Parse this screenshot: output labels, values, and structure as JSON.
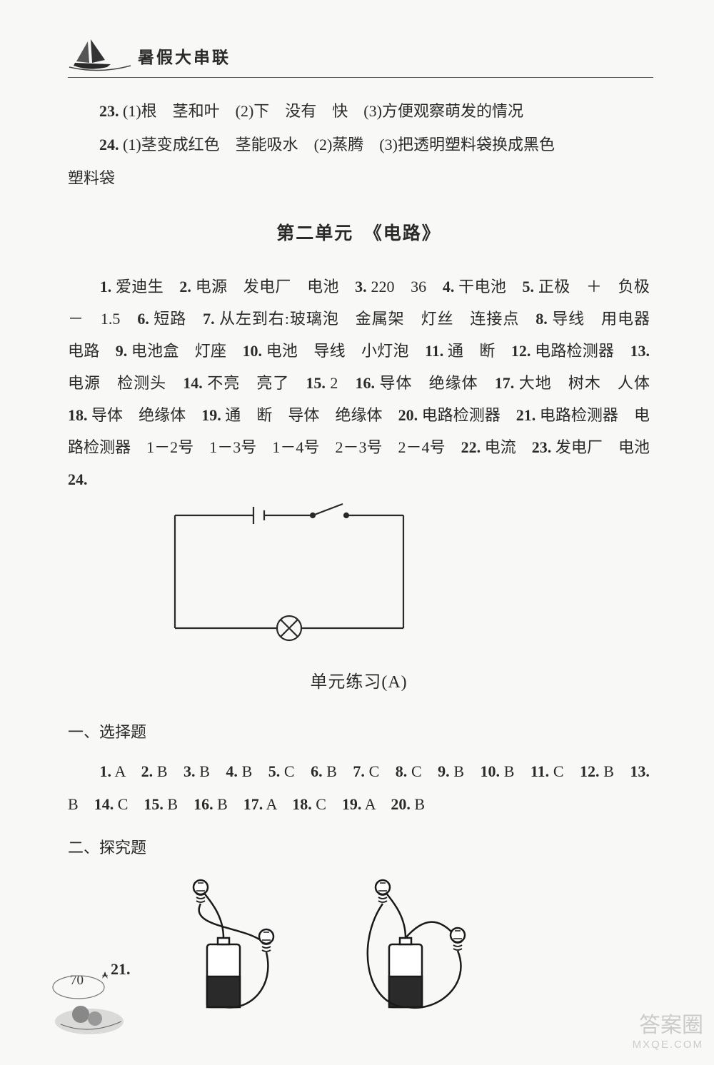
{
  "header": {
    "title": "暑假大串联"
  },
  "q23": {
    "num": "23.",
    "text": "(1)根　茎和叶　(2)下　没有　快　(3)方便观察萌发的情况"
  },
  "q24": {
    "num": "24.",
    "line1": "(1)茎变成红色　茎能吸水　(2)蒸腾　(3)把透明塑料袋换成黑色",
    "line2": "塑料袋"
  },
  "unit2": {
    "title": "第二单元　《电路》",
    "flow": "　　<b>1.</b> 爱迪生　<b>2.</b> 电源　发电厂　电池　<b>3.</b> 220　36　<b>4.</b> 干电池　<b>5.</b> 正极　＋　负极　－　1.5　<b>6.</b> 短路　<b>7.</b> 从左到右:玻璃泡　金属架　灯丝　连接点　<b>8.</b> 导线　用电器　电路　<b>9.</b> 电池盒　灯座　<b>10.</b> 电池　导线　小灯泡　<b>11.</b> 通　断　<b>12.</b> 电路检测器　<b>13.</b> 电源　检测头　<b>14.</b> 不亮　亮了　<b>15.</b> 2　<b>16.</b> 导体　绝缘体　<b>17.</b> 大地　树木　人体　<b>18.</b> 导体　绝缘体　<b>19.</b> 通　断　导体　绝缘体　<b>20.</b> 电路检测器　<b>21.</b> 电路检测器　电路检测器　1－2号　1－3号　1－4号　2－3号　2－4号　<b>22.</b> 电流　<b>23.</b> 发电厂　电池　<b>24.</b>"
  },
  "practiceA": {
    "title": "单元练习(A)",
    "h1": "一、选择题",
    "answers": "　　<b>1.</b> A　<b>2.</b> B　<b>3.</b> B　<b>4.</b> B　<b>5.</b> C　<b>6.</b> B　<b>7.</b> C　<b>8.</b> C　<b>9.</b> B　<b>10.</b> B　<b>11.</b> C　<b>12.</b> B　<b>13.</b> B　<b>14.</b> C　<b>15.</b> B　<b>16.</b> B　<b>17.</b> A　<b>18.</b> C　<b>19.</b> A　<b>20.</b> B",
    "h2": "二、探究题",
    "q21": "21."
  },
  "pageNumber": "70",
  "watermark": {
    "main": "答案圈",
    "sub": "MXQE.COM"
  },
  "circuit": {
    "stroke": "#2a2a2a",
    "stroke_width": 2,
    "bg": "none"
  },
  "diagrams": {
    "stroke": "#1a1a1a",
    "fill_dark": "#2a2a2a"
  }
}
